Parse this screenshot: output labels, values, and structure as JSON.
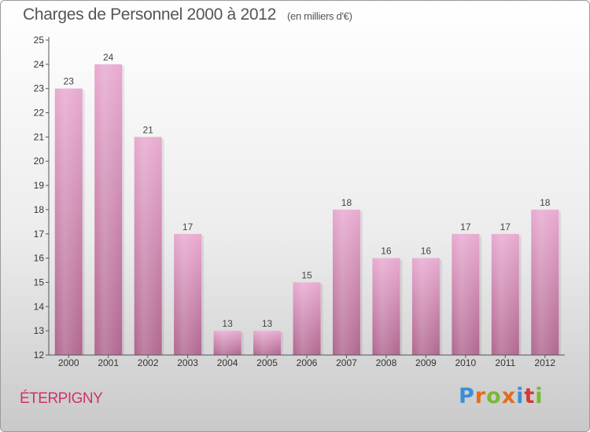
{
  "header": {
    "title": "Charges de Personnel 2000 à 2012",
    "subtitle": "(en milliers d'€)"
  },
  "footer": {
    "commune": "ÉTERPIGNY",
    "logo": "Proxiti"
  },
  "colors": {
    "bar_top": "#e8a9d0",
    "bar_bottom": "#b0668f",
    "axis": "#555555",
    "commune": "#d0306e"
  },
  "chart_data": {
    "type": "bar",
    "title": "Charges de Personnel 2000 à 2012",
    "subtitle": "(en milliers d'€)",
    "xlabel": "",
    "ylabel": "",
    "categories": [
      "2000",
      "2001",
      "2002",
      "2003",
      "2004",
      "2005",
      "2006",
      "2007",
      "2008",
      "2009",
      "2010",
      "2011",
      "2012"
    ],
    "values": [
      23,
      24,
      21,
      17,
      13,
      13,
      15,
      18,
      16,
      16,
      17,
      17,
      18
    ],
    "ylim": [
      12,
      25
    ],
    "yticks": [
      12,
      13,
      14,
      15,
      16,
      17,
      18,
      19,
      20,
      21,
      22,
      23,
      24,
      25
    ],
    "grid": false,
    "data_labels": true
  }
}
